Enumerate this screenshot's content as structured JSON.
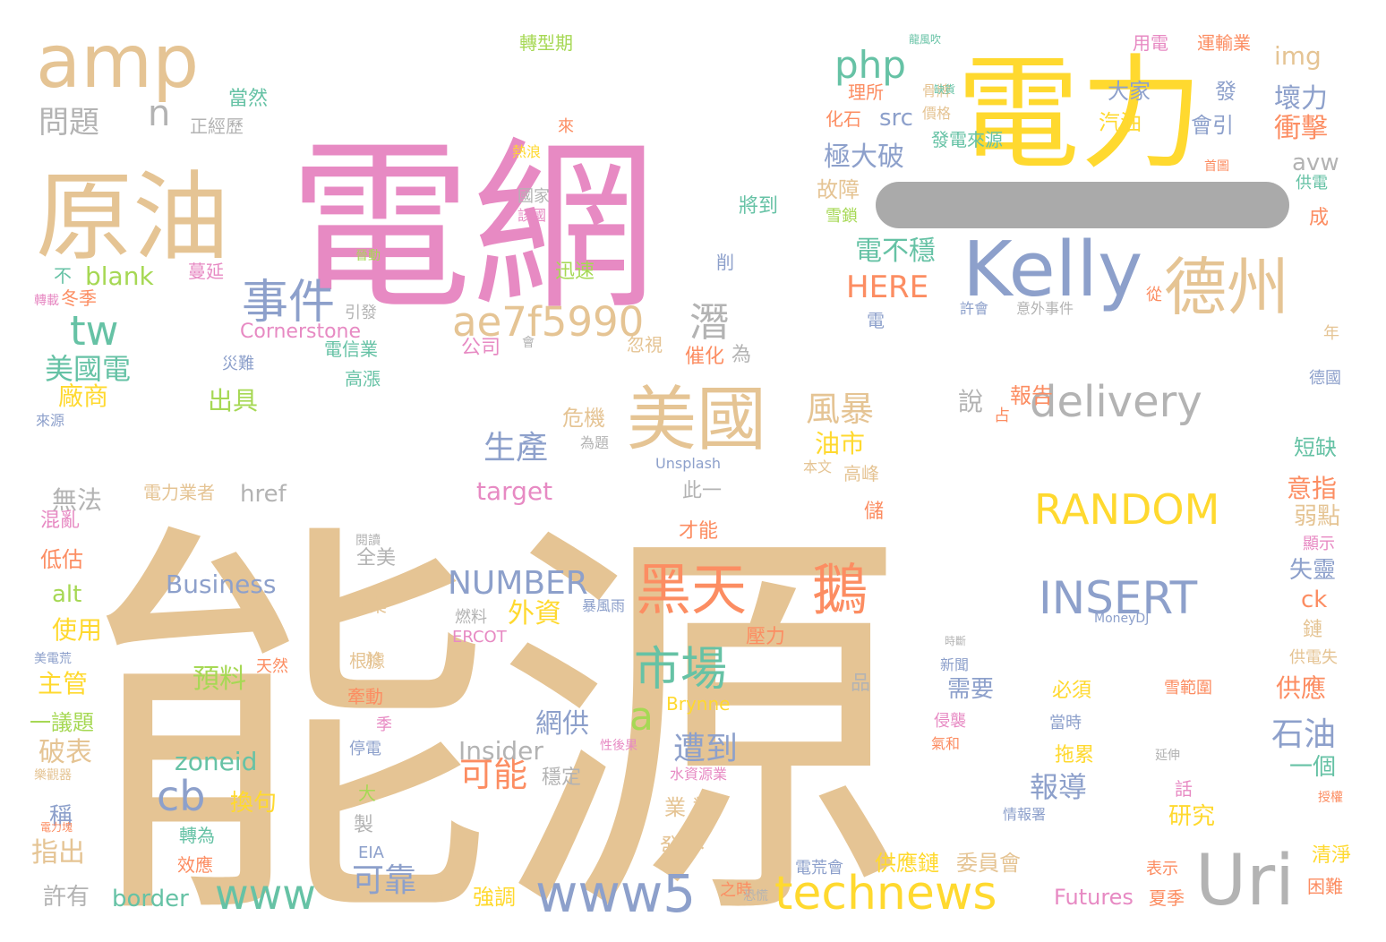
{
  "words": [
    {
      "text": "能源",
      "color": "#e5c494"
    },
    {
      "text": "電網",
      "color": "#e78ac3"
    },
    {
      "text": "電力",
      "color": "#ffd92f"
    },
    {
      "text": "原油",
      "color": "#e5c494"
    },
    {
      "text": "amp",
      "color": "#e5c494"
    },
    {
      "text": "Kelly",
      "color": "#8da0cb"
    },
    {
      "text": "德州",
      "color": "#e5c494"
    },
    {
      "text": "Uri",
      "color": "#b3b3b3"
    },
    {
      "text": "美國",
      "color": "#e5c494"
    },
    {
      "text": "黑天",
      "color": "#fc8d62"
    },
    {
      "text": "鵝",
      "color": "#fc8d62"
    },
    {
      "text": "市場",
      "color": "#66c2a5"
    },
    {
      "text": "technews",
      "color": "#ffd92f"
    },
    {
      "text": "www5",
      "color": "#8da0cb"
    },
    {
      "text": "www",
      "color": "#66c2a5"
    },
    {
      "text": "事件",
      "color": "#8da0cb"
    },
    {
      "text": "ae7f5990",
      "color": "#e5c494"
    },
    {
      "text": "delivery",
      "color": "#b3b3b3"
    },
    {
      "text": "RANDOM",
      "color": "#ffd92f"
    },
    {
      "text": "INSERT",
      "color": "#8da0cb"
    },
    {
      "text": "php",
      "color": "#66c2a5"
    },
    {
      "text": "tw",
      "color": "#66c2a5"
    },
    {
      "text": "cb",
      "color": "#8da0cb"
    },
    {
      "text": "潛",
      "color": "#b3b3b3"
    },
    {
      "text": "n",
      "color": "#b3b3b3"
    },
    {
      "text": "a",
      "color": "#a6d854"
    },
    {
      "text": "NUMBER",
      "color": "#8da0cb"
    },
    {
      "text": "生產",
      "color": "#8da0cb"
    },
    {
      "text": "風暴",
      "color": "#e5c494"
    },
    {
      "text": "石油",
      "color": "#8da0cb"
    },
    {
      "text": "可能",
      "color": "#fc8d62"
    },
    {
      "text": "遭到",
      "color": "#8da0cb"
    },
    {
      "text": "可靠",
      "color": "#8da0cb"
    },
    {
      "text": "問題",
      "color": "#b3b3b3"
    },
    {
      "text": "HERE",
      "color": "#fc8d62"
    },
    {
      "text": "美國電",
      "color": "#66c2a5"
    },
    {
      "text": "Business",
      "color": "#8da0cb"
    },
    {
      "text": "報導",
      "color": "#8da0cb"
    },
    {
      "text": "極大破",
      "color": "#8da0cb"
    },
    {
      "text": "壞力",
      "color": "#8da0cb"
    },
    {
      "text": "衝擊",
      "color": "#fc8d62"
    },
    {
      "text": "電不穩",
      "color": "#66c2a5"
    },
    {
      "text": "zoneid",
      "color": "#66c2a5"
    },
    {
      "text": "blank",
      "color": "#a6d854"
    },
    {
      "text": "target",
      "color": "#e78ac3"
    },
    {
      "text": "Insider",
      "color": "#b3b3b3"
    },
    {
      "text": "border",
      "color": "#66c2a5"
    },
    {
      "text": "Futures",
      "color": "#e78ac3"
    },
    {
      "text": "Cornerstone",
      "color": "#e78ac3"
    },
    {
      "text": "破表",
      "color": "#e5c494"
    },
    {
      "text": "指出",
      "color": "#e5c494"
    },
    {
      "text": "網供",
      "color": "#8da0cb"
    },
    {
      "text": "外資",
      "color": "#ffd92f"
    },
    {
      "text": "預料",
      "color": "#a6d854"
    },
    {
      "text": "src",
      "color": "#8da0cb"
    },
    {
      "text": "img",
      "color": "#e5c494"
    },
    {
      "text": "avw",
      "color": "#b3b3b3"
    },
    {
      "text": "href",
      "color": "#b3b3b3"
    },
    {
      "text": "alt",
      "color": "#a6d854"
    },
    {
      "text": "ck",
      "color": "#fc8d62"
    },
    {
      "text": "意指",
      "color": "#fc8d62"
    },
    {
      "text": "弱點",
      "color": "#e5c494"
    },
    {
      "text": "失靈",
      "color": "#8da0cb"
    },
    {
      "text": "短缺",
      "color": "#66c2a5"
    },
    {
      "text": "供應",
      "color": "#fc8d62"
    },
    {
      "text": "一個",
      "color": "#66c2a5"
    },
    {
      "text": "油市",
      "color": "#ffd92f"
    },
    {
      "text": "說",
      "color": "#b3b3b3"
    },
    {
      "text": "報告",
      "color": "#fc8d62"
    },
    {
      "text": "危機",
      "color": "#e5c494"
    },
    {
      "text": "無法",
      "color": "#b3b3b3"
    },
    {
      "text": "廠商",
      "color": "#ffd92f"
    },
    {
      "text": "出具",
      "color": "#a6d854"
    },
    {
      "text": "使用",
      "color": "#ffd92f"
    },
    {
      "text": "主管",
      "color": "#ffd92f"
    },
    {
      "text": "低估",
      "color": "#fc8d62"
    },
    {
      "text": "混亂",
      "color": "#e78ac3"
    },
    {
      "text": "一議題",
      "color": "#a6d854"
    },
    {
      "text": "許有",
      "color": "#b3b3b3"
    },
    {
      "text": "稱",
      "color": "#8da0cb"
    },
    {
      "text": "換句",
      "color": "#ffd92f"
    },
    {
      "text": "強調",
      "color": "#ffd92f"
    },
    {
      "text": "供應鏈",
      "color": "#ffd92f"
    },
    {
      "text": "委員會",
      "color": "#e5c494"
    },
    {
      "text": "發下",
      "color": "#e5c494"
    },
    {
      "text": "業 對",
      "color": "#e5c494"
    },
    {
      "text": "研究",
      "color": "#ffd92f"
    },
    {
      "text": "需要",
      "color": "#8da0cb"
    },
    {
      "text": "必須",
      "color": "#ffd92f"
    },
    {
      "text": "拖累",
      "color": "#ffd92f"
    },
    {
      "text": "大家",
      "color": "#8da0cb"
    },
    {
      "text": "汽油",
      "color": "#ffd92f"
    },
    {
      "text": "會引",
      "color": "#8da0cb"
    },
    {
      "text": "發",
      "color": "#8da0cb"
    },
    {
      "text": "故障",
      "color": "#e5c494"
    },
    {
      "text": "化石",
      "color": "#fc8d62"
    },
    {
      "text": "理所",
      "color": "#fc8d62"
    },
    {
      "text": "當然",
      "color": "#66c2a5"
    },
    {
      "text": "正經歷",
      "color": "#b3b3b3"
    },
    {
      "text": "轉型期",
      "color": "#a6d854"
    },
    {
      "text": "運輸業",
      "color": "#fc8d62"
    },
    {
      "text": "用電",
      "color": "#e78ac3"
    },
    {
      "text": "骨牌",
      "color": "#e5c494"
    },
    {
      "text": "價格",
      "color": "#e5c494"
    },
    {
      "text": "發電來源",
      "color": "#66c2a5"
    },
    {
      "text": "將到",
      "color": "#66c2a5"
    },
    {
      "text": "國家",
      "color": "#b3b3b3"
    },
    {
      "text": "迅速",
      "color": "#a6d854"
    },
    {
      "text": "蔓延",
      "color": "#e78ac3"
    },
    {
      "text": "冬季",
      "color": "#fc8d62"
    },
    {
      "text": "不",
      "color": "#66c2a5"
    },
    {
      "text": "引發",
      "color": "#b3b3b3"
    },
    {
      "text": "電信業",
      "color": "#66c2a5"
    },
    {
      "text": "高漲",
      "color": "#66c2a5"
    },
    {
      "text": "災難",
      "color": "#8da0cb"
    },
    {
      "text": "公司",
      "color": "#e78ac3"
    },
    {
      "text": "忽視",
      "color": "#e5c494"
    },
    {
      "text": "催化",
      "color": "#fc8d62"
    },
    {
      "text": "為",
      "color": "#b3b3b3"
    },
    {
      "text": "電力業者",
      "color": "#e5c494"
    },
    {
      "text": "全美",
      "color": "#b3b3b3"
    },
    {
      "text": "產業",
      "color": "#e5c494"
    },
    {
      "text": "燃料",
      "color": "#b3b3b3"
    },
    {
      "text": "ERCOT",
      "color": "#e78ac3"
    },
    {
      "text": "天然",
      "color": "#fc8d62"
    },
    {
      "text": "根據",
      "color": "#e5c494"
    },
    {
      "text": "於",
      "color": "#e5c494"
    },
    {
      "text": "牽動",
      "color": "#fc8d62"
    },
    {
      "text": "停電",
      "color": "#8da0cb"
    },
    {
      "text": "穩定",
      "color": "#b3b3b3"
    },
    {
      "text": "此一",
      "color": "#b3b3b3"
    },
    {
      "text": "才能",
      "color": "#fc8d62"
    },
    {
      "text": "Brynne",
      "color": "#ffd92f"
    },
    {
      "text": "Unsplash",
      "color": "#8da0cb"
    },
    {
      "text": "EIA",
      "color": "#8da0cb"
    },
    {
      "text": "壓力",
      "color": "#fc8d62"
    },
    {
      "text": "品",
      "color": "#b3b3b3"
    },
    {
      "text": "儲",
      "color": "#fc8d62"
    },
    {
      "text": "高峰",
      "color": "#e5c494"
    },
    {
      "text": "夏季",
      "color": "#fc8d62"
    },
    {
      "text": "困難",
      "color": "#fc8d62"
    },
    {
      "text": "清淨",
      "color": "#ffd92f"
    },
    {
      "text": "成",
      "color": "#fc8d62"
    },
    {
      "text": "供電",
      "color": "#66c2a5"
    },
    {
      "text": "德國",
      "color": "#8da0cb"
    },
    {
      "text": "顯示",
      "color": "#e78ac3"
    },
    {
      "text": "鏈",
      "color": "#e5c494"
    },
    {
      "text": "話",
      "color": "#e78ac3"
    },
    {
      "text": "表示",
      "color": "#fc8d62"
    },
    {
      "text": "當時",
      "color": "#8da0cb"
    },
    {
      "text": "電荒會",
      "color": "#8da0cb"
    },
    {
      "text": "年",
      "color": "#e5c494"
    },
    {
      "text": "許會",
      "color": "#8da0cb"
    },
    {
      "text": "意外事件",
      "color": "#b3b3b3"
    },
    {
      "text": "從",
      "color": "#fc8d62"
    },
    {
      "text": "電",
      "color": "#8da0cb"
    },
    {
      "text": "新聞",
      "color": "#8da0cb"
    },
    {
      "text": "供電失",
      "color": "#e5c494"
    },
    {
      "text": "雪範圍",
      "color": "#fc8d62"
    },
    {
      "text": "製",
      "color": "#b3b3b3"
    },
    {
      "text": "大",
      "color": "#a6d854"
    },
    {
      "text": "轉為",
      "color": "#66c2a5"
    },
    {
      "text": "效應",
      "color": "#fc8d62"
    },
    {
      "text": "季",
      "color": "#e78ac3"
    },
    {
      "text": "水資源業",
      "color": "#e78ac3"
    },
    {
      "text": "之時",
      "color": "#fc8d62"
    },
    {
      "text": "資訊",
      "color": "#e5c494"
    },
    {
      "text": "MoneyDJ",
      "color": "#8da0cb"
    },
    {
      "text": "暴風雨",
      "color": "#8da0cb"
    },
    {
      "text": "為題",
      "color": "#b3b3b3"
    },
    {
      "text": "本文",
      "color": "#e5c494"
    },
    {
      "text": "來",
      "color": "#fc8d62"
    },
    {
      "text": "熱浪",
      "color": "#ffd92f"
    },
    {
      "text": "該國",
      "color": "#e78ac3"
    },
    {
      "text": "來源",
      "color": "#8da0cb"
    },
    {
      "text": "轉載",
      "color": "#e78ac3"
    },
    {
      "text": "占",
      "color": "#fc8d62"
    },
    {
      "text": "會",
      "color": "#b3b3b3"
    },
    {
      "text": "侵襲",
      "color": "#e78ac3"
    },
    {
      "text": "氣和",
      "color": "#fc8d62"
    },
    {
      "text": "情報署",
      "color": "#8da0cb"
    },
    {
      "text": "延伸",
      "color": "#b3b3b3"
    },
    {
      "text": "授權",
      "color": "#fc8d62"
    },
    {
      "text": "性後果",
      "color": "#e78ac3"
    },
    {
      "text": "美電荒",
      "color": "#8da0cb"
    },
    {
      "text": "首圖",
      "color": "#fc8d62"
    },
    {
      "text": "缺貨",
      "color": "#66c2a5"
    },
    {
      "text": "閱讀",
      "color": "#b3b3b3"
    },
    {
      "text": "樂觀器",
      "color": "#e5c494"
    },
    {
      "text": "電力塊",
      "color": "#fc8d62"
    },
    {
      "text": "雪鎖",
      "color": "#a6d854"
    },
    {
      "text": "晉動",
      "color": "#a6d854"
    },
    {
      "text": "削",
      "color": "#8da0cb"
    },
    {
      "text": "時斷",
      "color": "#b3b3b3"
    },
    {
      "text": "龍風吹",
      "color": "#66c2a5"
    },
    {
      "text": "恐慌",
      "color": "#b3b3b3"
    }
  ],
  "redaction_bar_color": "#aaaaaa"
}
